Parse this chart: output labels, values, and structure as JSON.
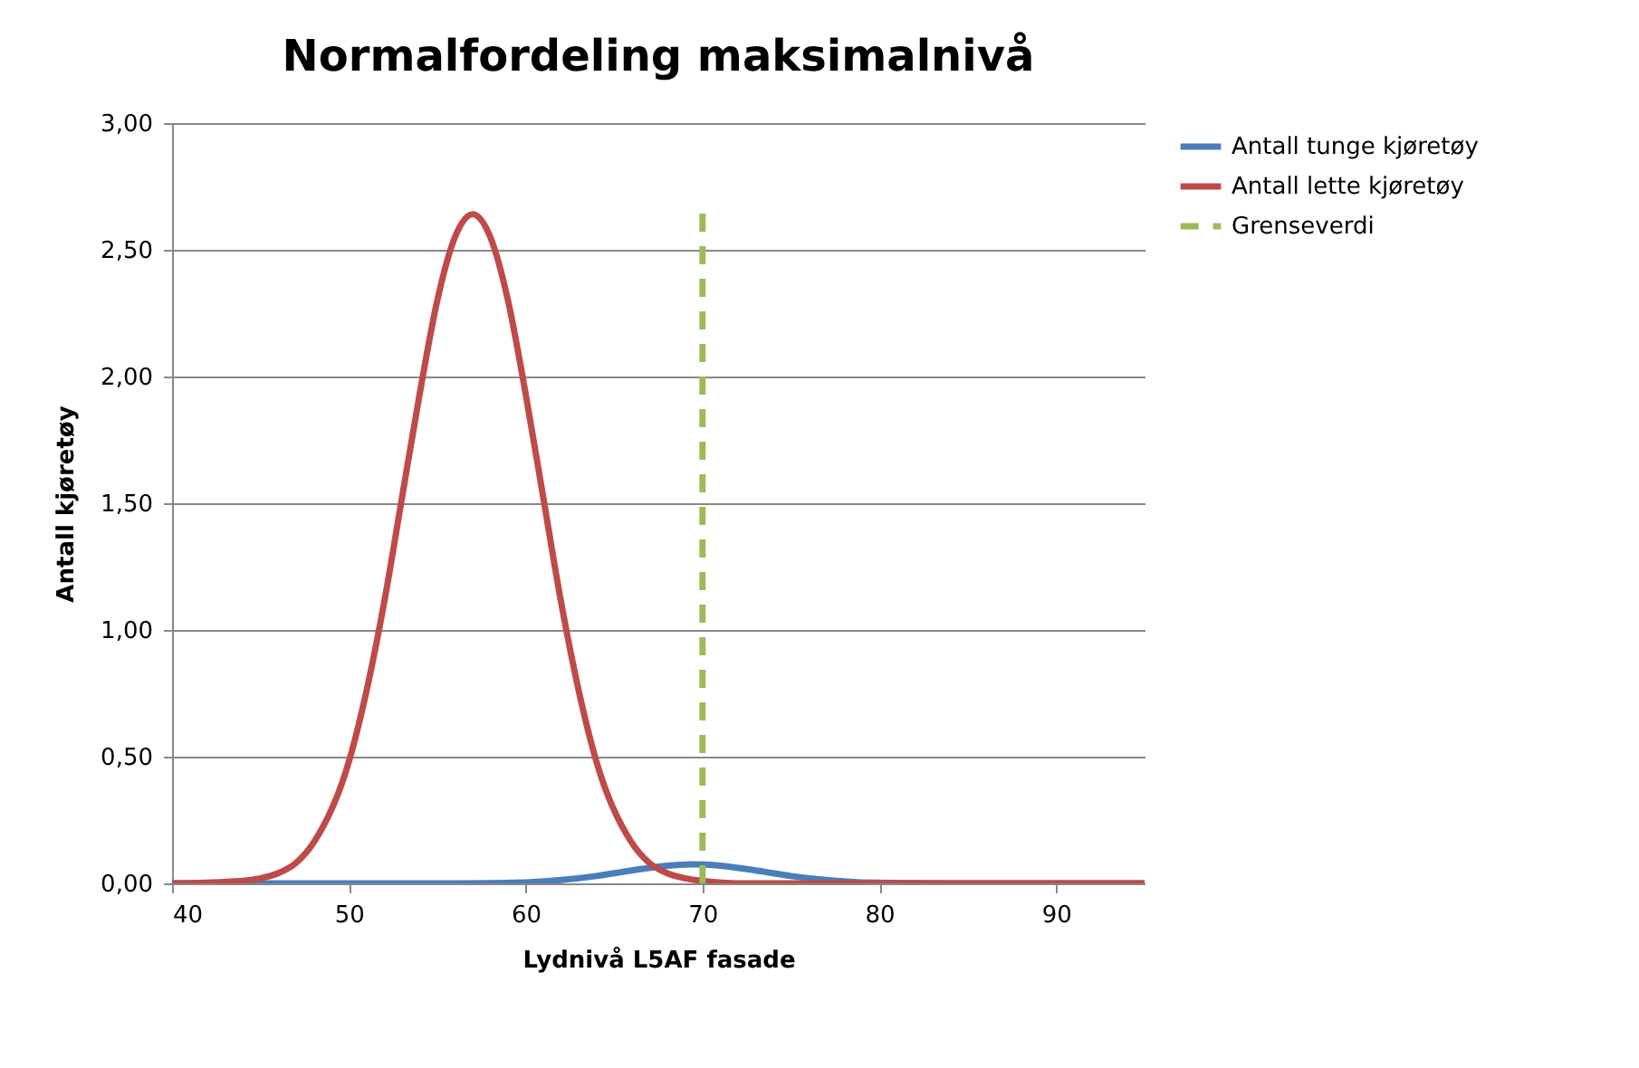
{
  "chart_data": {
    "type": "line",
    "title": "Normalfordeling maksimalnivå",
    "xlabel": "Lydnivå L5AF fasade",
    "ylabel": "Antall kjøretøy",
    "xlim": [
      40,
      95
    ],
    "xticks": [
      40,
      50,
      60,
      70,
      80,
      90
    ],
    "ylim": [
      0,
      3
    ],
    "yticks": [
      {
        "value": 0,
        "label": "0,00"
      },
      {
        "value": 0.5,
        "label": "0,50"
      },
      {
        "value": 1,
        "label": "1,00"
      },
      {
        "value": 1.5,
        "label": "1,50"
      },
      {
        "value": 2,
        "label": "2,00"
      },
      {
        "value": 2.5,
        "label": "2,50"
      },
      {
        "value": 3,
        "label": "3,00"
      }
    ],
    "grid": "y",
    "legend": "right",
    "marker": "none",
    "series": [
      {
        "name": "Antall tunge kjøretøy",
        "color": "#4a7ebb",
        "line_style": "solid",
        "x": [
          40,
          55,
          60,
          62,
          64,
          66,
          68,
          69.5,
          71,
          73,
          75,
          77,
          79,
          85,
          95
        ],
        "values": [
          0,
          0,
          0.004,
          0.013,
          0.029,
          0.051,
          0.07,
          0.075,
          0.07,
          0.051,
          0.029,
          0.013,
          0.004,
          0,
          0
        ]
      },
      {
        "name": "Antall lette kjøretøy",
        "color": "#be4b48",
        "line_style": "solid",
        "x": [
          40,
          44,
          45,
          46,
          47,
          48,
          50,
          51,
          52,
          53,
          54,
          55,
          56,
          57,
          58,
          59,
          60,
          61,
          62,
          63,
          64,
          66,
          67,
          68,
          69,
          70,
          72,
          95
        ],
        "values": [
          0,
          0.01,
          0.02,
          0.04,
          0.08,
          0.16,
          0.48,
          0.76,
          1.11,
          1.52,
          1.93,
          2.3,
          2.55,
          2.64,
          2.55,
          2.3,
          1.93,
          1.52,
          1.11,
          0.76,
          0.48,
          0.16,
          0.08,
          0.04,
          0.02,
          0.01,
          0,
          0
        ]
      },
      {
        "name": "Grenseverdi",
        "color": "#9bbb59",
        "line_style": "dashed",
        "x": [
          70,
          70
        ],
        "values": [
          0,
          2.65
        ]
      }
    ]
  }
}
